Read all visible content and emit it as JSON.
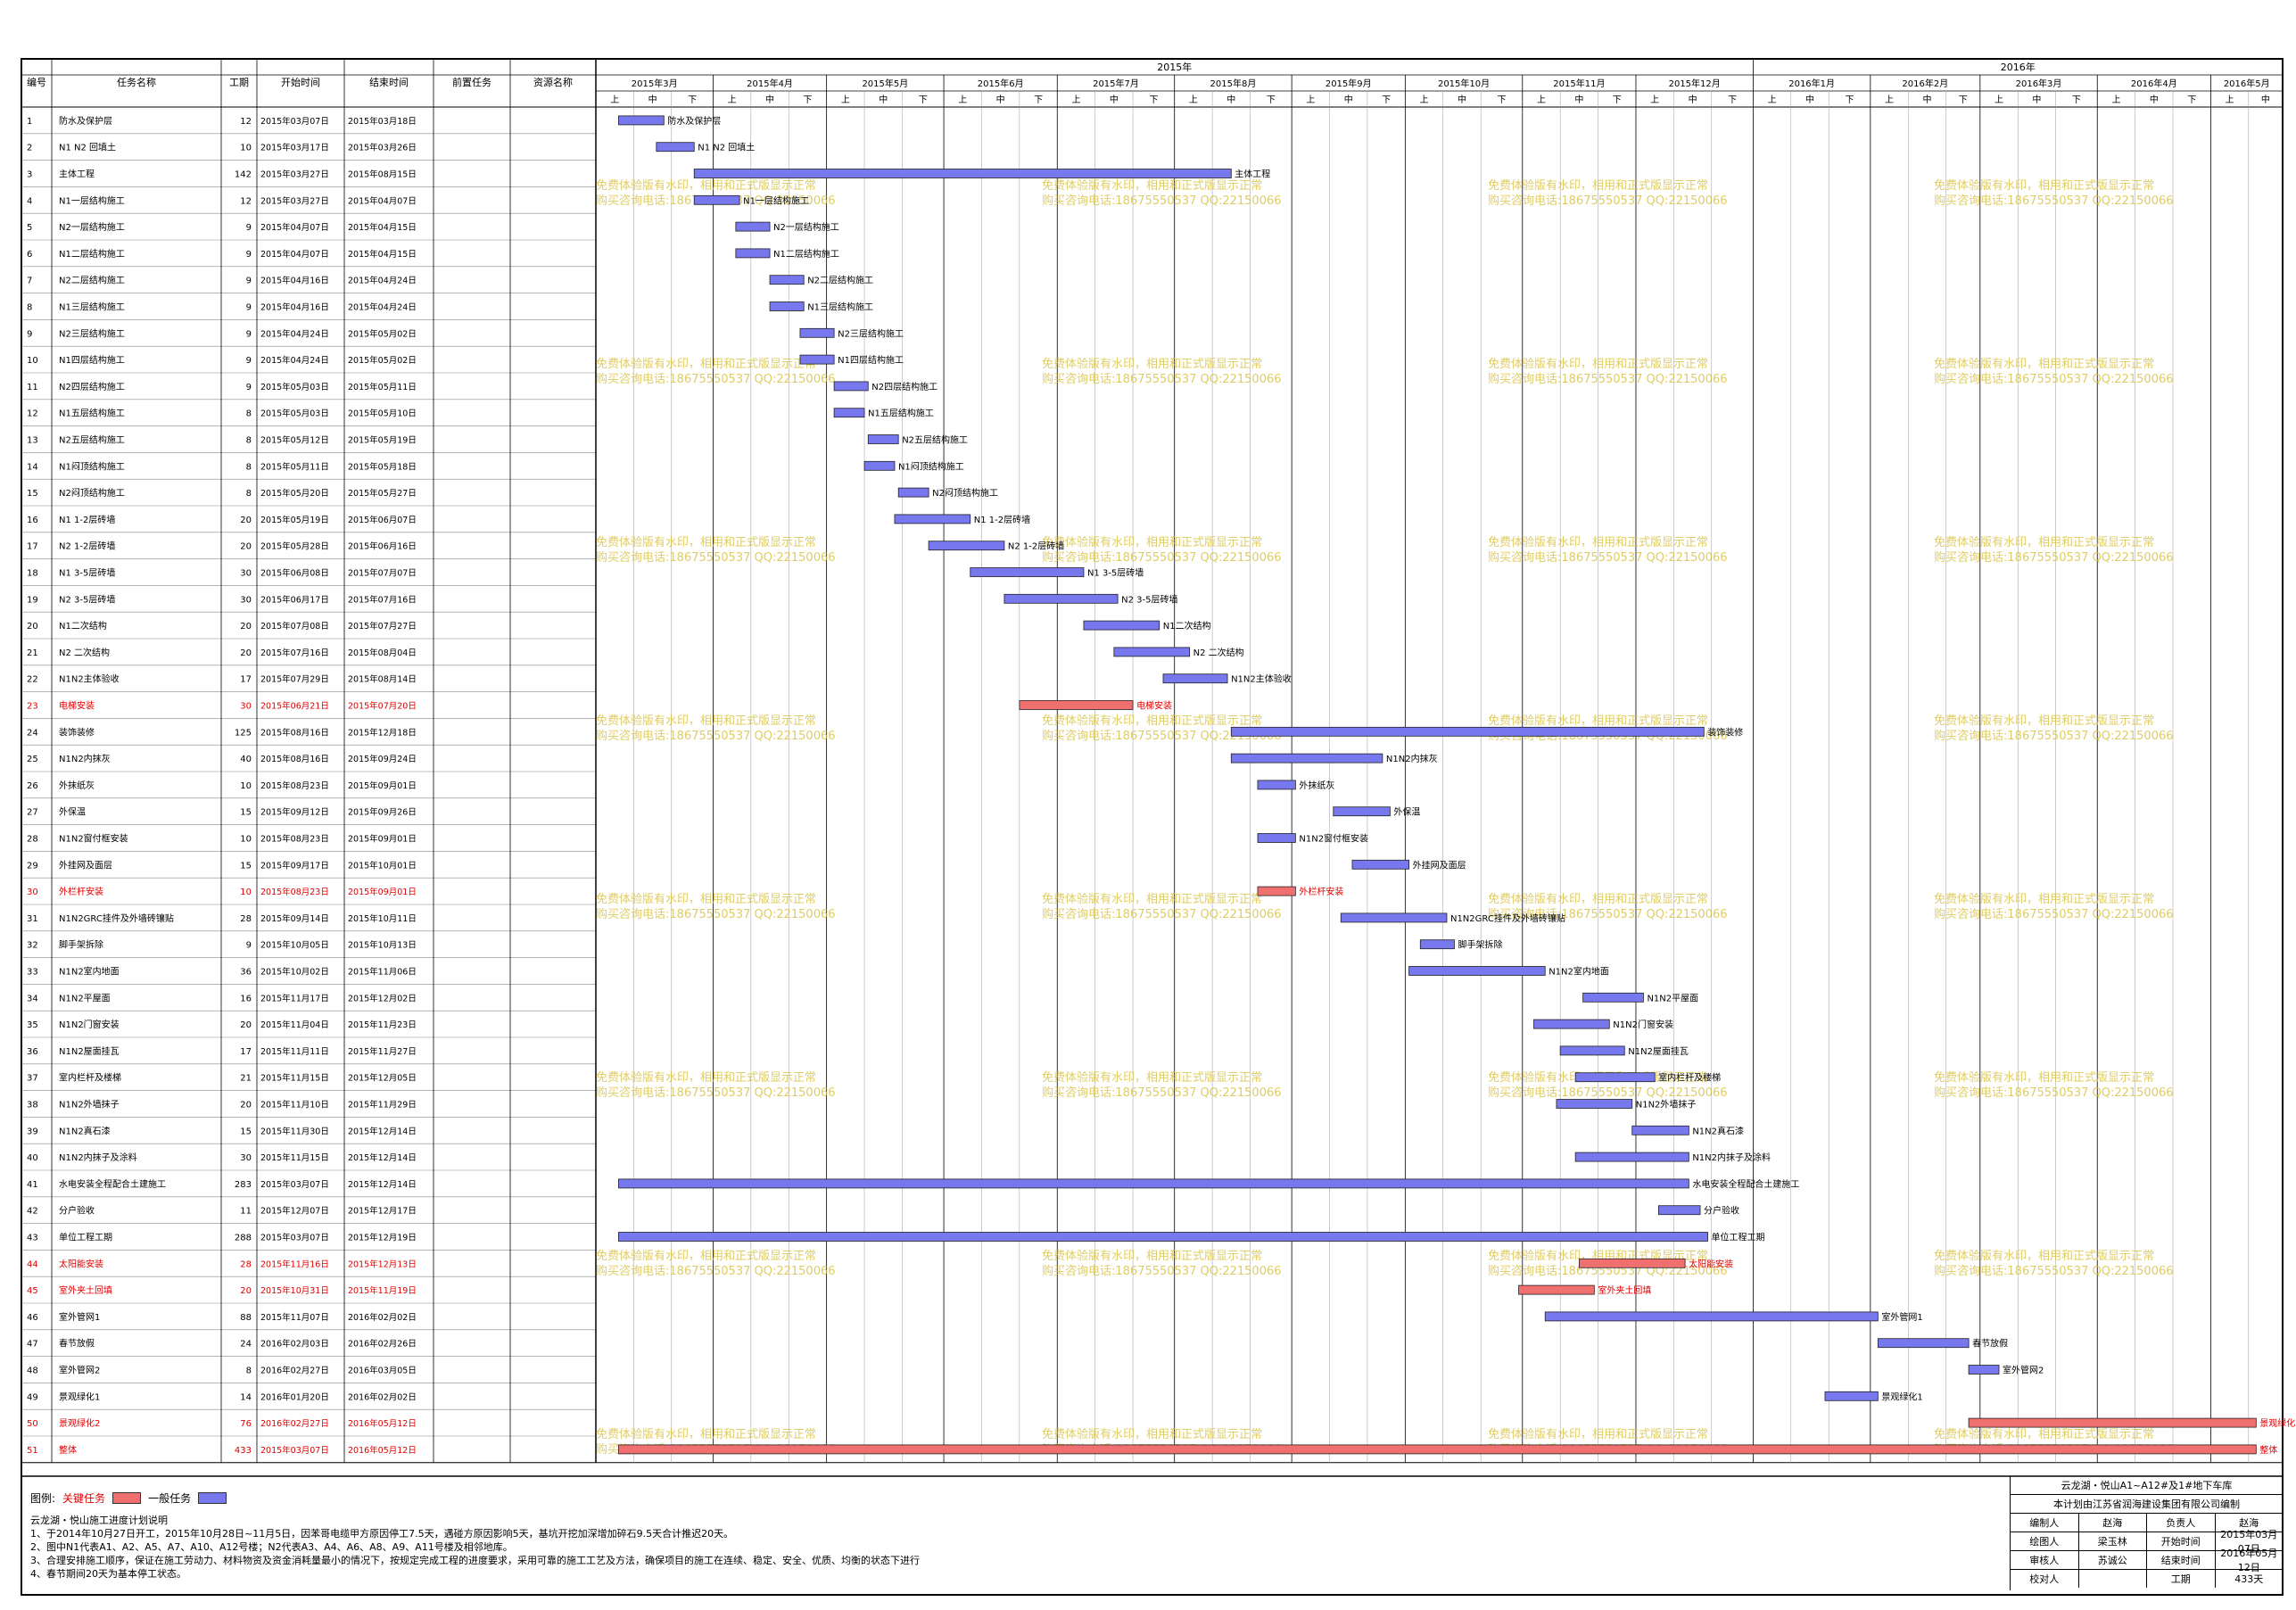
{
  "columns": [
    "编号",
    "任务名称",
    "工期",
    "开始时间",
    "结束时间",
    "前置任务",
    "资源名称"
  ],
  "years": [
    "2015年",
    "2016年"
  ],
  "months": [
    "2015年3月",
    "2015年4月",
    "2015年5月",
    "2015年6月",
    "2015年7月",
    "2015年8月",
    "2015年9月",
    "2015年10月",
    "2015年11月",
    "2015年12月",
    "2016年1月",
    "2016年2月",
    "2016年3月",
    "2016年4月",
    "2016年5月"
  ],
  "periods": [
    "上",
    "中",
    "下"
  ],
  "watermark": [
    "免费体验版有水印，相用和正式版显示正常",
    "购买咨询电话:18675550537 QQ:22150066"
  ],
  "chart_data": {
    "type": "gantt",
    "time_range": [
      "2015-03-01",
      "2016-05-20"
    ],
    "colors": {
      "normal": "#7777ee",
      "critical": "#f07070",
      "critical_text": "#e00000"
    },
    "tasks": [
      {
        "id": "1",
        "name": "防水及保护层",
        "duration": "12",
        "start": "2015年03月07日",
        "end": "2015年03月18日",
        "s": "2015-03-07",
        "e": "2015-03-18",
        "critical": false
      },
      {
        "id": "2",
        "name": "N1 N2 回填土",
        "duration": "10",
        "start": "2015年03月17日",
        "end": "2015年03月26日",
        "s": "2015-03-17",
        "e": "2015-03-26",
        "critical": false
      },
      {
        "id": "3",
        "name": "主体工程",
        "duration": "142",
        "start": "2015年03月27日",
        "end": "2015年08月15日",
        "s": "2015-03-27",
        "e": "2015-08-15",
        "critical": false
      },
      {
        "id": "4",
        "name": "N1一层结构施工",
        "duration": "12",
        "start": "2015年03月27日",
        "end": "2015年04月07日",
        "s": "2015-03-27",
        "e": "2015-04-07",
        "critical": false
      },
      {
        "id": "5",
        "name": "N2一层结构施工",
        "duration": "9",
        "start": "2015年04月07日",
        "end": "2015年04月15日",
        "s": "2015-04-07",
        "e": "2015-04-15",
        "critical": false
      },
      {
        "id": "6",
        "name": "N1二层结构施工",
        "duration": "9",
        "start": "2015年04月07日",
        "end": "2015年04月15日",
        "s": "2015-04-07",
        "e": "2015-04-15",
        "critical": false
      },
      {
        "id": "7",
        "name": "N2二层结构施工",
        "duration": "9",
        "start": "2015年04月16日",
        "end": "2015年04月24日",
        "s": "2015-04-16",
        "e": "2015-04-24",
        "critical": false
      },
      {
        "id": "8",
        "name": "N1三层结构施工",
        "duration": "9",
        "start": "2015年04月16日",
        "end": "2015年04月24日",
        "s": "2015-04-16",
        "e": "2015-04-24",
        "critical": false
      },
      {
        "id": "9",
        "name": "N2三层结构施工",
        "duration": "9",
        "start": "2015年04月24日",
        "end": "2015年05月02日",
        "s": "2015-04-24",
        "e": "2015-05-02",
        "critical": false
      },
      {
        "id": "10",
        "name": "N1四层结构施工",
        "duration": "9",
        "start": "2015年04月24日",
        "end": "2015年05月02日",
        "s": "2015-04-24",
        "e": "2015-05-02",
        "critical": false
      },
      {
        "id": "11",
        "name": "N2四层结构施工",
        "duration": "9",
        "start": "2015年05月03日",
        "end": "2015年05月11日",
        "s": "2015-05-03",
        "e": "2015-05-11",
        "critical": false
      },
      {
        "id": "12",
        "name": "N1五层结构施工",
        "duration": "8",
        "start": "2015年05月03日",
        "end": "2015年05月10日",
        "s": "2015-05-03",
        "e": "2015-05-10",
        "critical": false
      },
      {
        "id": "13",
        "name": "N2五层结构施工",
        "duration": "8",
        "start": "2015年05月12日",
        "end": "2015年05月19日",
        "s": "2015-05-12",
        "e": "2015-05-19",
        "critical": false
      },
      {
        "id": "14",
        "name": "N1闷顶结构施工",
        "duration": "8",
        "start": "2015年05月11日",
        "end": "2015年05月18日",
        "s": "2015-05-11",
        "e": "2015-05-18",
        "critical": false
      },
      {
        "id": "15",
        "name": "N2闷顶结构施工",
        "duration": "8",
        "start": "2015年05月20日",
        "end": "2015年05月27日",
        "s": "2015-05-20",
        "e": "2015-05-27",
        "critical": false
      },
      {
        "id": "16",
        "name": "N1 1-2层砖墙",
        "duration": "20",
        "start": "2015年05月19日",
        "end": "2015年06月07日",
        "s": "2015-05-19",
        "e": "2015-06-07",
        "critical": false
      },
      {
        "id": "17",
        "name": "N2 1-2层砖墙",
        "duration": "20",
        "start": "2015年05月28日",
        "end": "2015年06月16日",
        "s": "2015-05-28",
        "e": "2015-06-16",
        "critical": false
      },
      {
        "id": "18",
        "name": "N1 3-5层砖墙",
        "duration": "30",
        "start": "2015年06月08日",
        "end": "2015年07月07日",
        "s": "2015-06-08",
        "e": "2015-07-07",
        "critical": false
      },
      {
        "id": "19",
        "name": "N2 3-5层砖墙",
        "duration": "30",
        "start": "2015年06月17日",
        "end": "2015年07月16日",
        "s": "2015-06-17",
        "e": "2015-07-16",
        "critical": false
      },
      {
        "id": "20",
        "name": "N1二次结构",
        "duration": "20",
        "start": "2015年07月08日",
        "end": "2015年07月27日",
        "s": "2015-07-08",
        "e": "2015-07-27",
        "critical": false
      },
      {
        "id": "21",
        "name": "N2 二次结构",
        "duration": "20",
        "start": "2015年07月16日",
        "end": "2015年08月04日",
        "s": "2015-07-16",
        "e": "2015-08-04",
        "critical": false
      },
      {
        "id": "22",
        "name": "N1N2主体验收",
        "duration": "17",
        "start": "2015年07月29日",
        "end": "2015年08月14日",
        "s": "2015-07-29",
        "e": "2015-08-14",
        "critical": false
      },
      {
        "id": "23",
        "name": "电梯安装",
        "duration": "30",
        "start": "2015年06月21日",
        "end": "2015年07月20日",
        "s": "2015-06-21",
        "e": "2015-07-20",
        "critical": true
      },
      {
        "id": "24",
        "name": "装饰装修",
        "duration": "125",
        "start": "2015年08月16日",
        "end": "2015年12月18日",
        "s": "2015-08-16",
        "e": "2015-12-18",
        "critical": false
      },
      {
        "id": "25",
        "name": "N1N2内抹灰",
        "duration": "40",
        "start": "2015年08月16日",
        "end": "2015年09月24日",
        "s": "2015-08-16",
        "e": "2015-09-24",
        "critical": false
      },
      {
        "id": "26",
        "name": "外抹纸灰",
        "duration": "10",
        "start": "2015年08月23日",
        "end": "2015年09月01日",
        "s": "2015-08-23",
        "e": "2015-09-01",
        "critical": false
      },
      {
        "id": "27",
        "name": "外保温",
        "duration": "15",
        "start": "2015年09月12日",
        "end": "2015年09月26日",
        "s": "2015-09-12",
        "e": "2015-09-26",
        "critical": false
      },
      {
        "id": "28",
        "name": "N1N2窗付框安装",
        "duration": "10",
        "start": "2015年08月23日",
        "end": "2015年09月01日",
        "s": "2015-08-23",
        "e": "2015-09-01",
        "critical": false
      },
      {
        "id": "29",
        "name": "外挂网及面层",
        "duration": "15",
        "start": "2015年09月17日",
        "end": "2015年10月01日",
        "s": "2015-09-17",
        "e": "2015-10-01",
        "critical": false
      },
      {
        "id": "30",
        "name": "外栏杆安装",
        "duration": "10",
        "start": "2015年08月23日",
        "end": "2015年09月01日",
        "s": "2015-08-23",
        "e": "2015-09-01",
        "critical": true
      },
      {
        "id": "31",
        "name": "N1N2GRC挂件及外墙砖镶贴",
        "duration": "28",
        "start": "2015年09月14日",
        "end": "2015年10月11日",
        "s": "2015-09-14",
        "e": "2015-10-11",
        "critical": false
      },
      {
        "id": "32",
        "name": "脚手架拆除",
        "duration": "9",
        "start": "2015年10月05日",
        "end": "2015年10月13日",
        "s": "2015-10-05",
        "e": "2015-10-13",
        "critical": false
      },
      {
        "id": "33",
        "name": "N1N2室内地面",
        "duration": "36",
        "start": "2015年10月02日",
        "end": "2015年11月06日",
        "s": "2015-10-02",
        "e": "2015-11-06",
        "critical": false
      },
      {
        "id": "34",
        "name": "N1N2平屋面",
        "duration": "16",
        "start": "2015年11月17日",
        "end": "2015年12月02日",
        "s": "2015-11-17",
        "e": "2015-12-02",
        "critical": false
      },
      {
        "id": "35",
        "name": "N1N2门窗安装",
        "duration": "20",
        "start": "2015年11月04日",
        "end": "2015年11月23日",
        "s": "2015-11-04",
        "e": "2015-11-23",
        "critical": false
      },
      {
        "id": "36",
        "name": "N1N2屋面挂瓦",
        "duration": "17",
        "start": "2015年11月11日",
        "end": "2015年11月27日",
        "s": "2015-11-11",
        "e": "2015-11-27",
        "critical": false
      },
      {
        "id": "37",
        "name": "室内栏杆及楼梯",
        "duration": "21",
        "start": "2015年11月15日",
        "end": "2015年12月05日",
        "s": "2015-11-15",
        "e": "2015-12-05",
        "critical": false
      },
      {
        "id": "38",
        "name": "N1N2外墙抹子",
        "duration": "20",
        "start": "2015年11月10日",
        "end": "2015年11月29日",
        "s": "2015-11-10",
        "e": "2015-11-29",
        "critical": false
      },
      {
        "id": "39",
        "name": "N1N2真石漆",
        "duration": "15",
        "start": "2015年11月30日",
        "end": "2015年12月14日",
        "s": "2015-11-30",
        "e": "2015-12-14",
        "critical": false
      },
      {
        "id": "40",
        "name": "N1N2内抹子及涂料",
        "duration": "30",
        "start": "2015年11月15日",
        "end": "2015年12月14日",
        "s": "2015-11-15",
        "e": "2015-12-14",
        "critical": false
      },
      {
        "id": "41",
        "name": "水电安装全程配合土建施工",
        "duration": "283",
        "start": "2015年03月07日",
        "end": "2015年12月14日",
        "s": "2015-03-07",
        "e": "2015-12-14",
        "critical": false
      },
      {
        "id": "42",
        "name": "分户验收",
        "duration": "11",
        "start": "2015年12月07日",
        "end": "2015年12月17日",
        "s": "2015-12-07",
        "e": "2015-12-17",
        "critical": false
      },
      {
        "id": "43",
        "name": "单位工程工期",
        "duration": "288",
        "start": "2015年03月07日",
        "end": "2015年12月19日",
        "s": "2015-03-07",
        "e": "2015-12-19",
        "critical": false
      },
      {
        "id": "44",
        "name": "太阳能安装",
        "duration": "28",
        "start": "2015年11月16日",
        "end": "2015年12月13日",
        "s": "2015-11-16",
        "e": "2015-12-13",
        "critical": true
      },
      {
        "id": "45",
        "name": "室外夹土回填",
        "duration": "20",
        "start": "2015年10月31日",
        "end": "2015年11月19日",
        "s": "2015-10-31",
        "e": "2015-11-19",
        "critical": true
      },
      {
        "id": "46",
        "name": "室外管网1",
        "duration": "88",
        "start": "2015年11月07日",
        "end": "2016年02月02日",
        "s": "2015-11-07",
        "e": "2016-02-02",
        "critical": false
      },
      {
        "id": "47",
        "name": "春节放假",
        "duration": "24",
        "start": "2016年02月03日",
        "end": "2016年02月26日",
        "s": "2016-02-03",
        "e": "2016-02-26",
        "critical": false
      },
      {
        "id": "48",
        "name": "室外管网2",
        "duration": "8",
        "start": "2016年02月27日",
        "end": "2016年03月05日",
        "s": "2016-02-27",
        "e": "2016-03-05",
        "critical": false
      },
      {
        "id": "49",
        "name": "景观绿化1",
        "duration": "14",
        "start": "2016年01月20日",
        "end": "2016年02月02日",
        "s": "2016-01-20",
        "e": "2016-02-02",
        "critical": false
      },
      {
        "id": "50",
        "name": "景观绿化2",
        "duration": "76",
        "start": "2016年02月27日",
        "end": "2016年05月12日",
        "s": "2016-02-27",
        "e": "2016-05-12",
        "critical": true
      },
      {
        "id": "51",
        "name": "整体",
        "duration": "433",
        "start": "2015年03月07日",
        "end": "2016年05月12日",
        "s": "2015-03-07",
        "e": "2016-05-12",
        "critical": true
      }
    ]
  },
  "legend": {
    "label": "图例:",
    "critical": "关键任务",
    "normal": "一般任务"
  },
  "notes": [
    "云龙湖・悦山施工进度计划说明",
    "1、于2014年10月27日开工，2015年10月28日~11月5日，因苯哥电缆甲方原因停工7.5天，遇碰方原因影响5天，基坑开挖加深增加碎石9.5天合计推迟20天。",
    "2、图中N1代表A1、A2、A5、A7、A10、A12号楼；N2代表A3、A4、A6、A8、A9、A11号楼及相邻地库。",
    "3、合理安排施工顺序，保证在施工劳动力、材料物资及资金消耗量最小的情况下，按规定完成工程的进度要求，采用可靠的施工工艺及方法，确保项目的施工在连续、稳定、安全、优质、均衡的状态下进行",
    "4、春节期间20天为基本停工状态。"
  ],
  "signoff": {
    "project": "云龙湖・悦山A1~A12#及1#地下车库",
    "org": "本计划由江苏省润海建设集团有限公司编制",
    "rows": [
      [
        "编制人",
        "赵海",
        "负责人",
        "赵海"
      ],
      [
        "绘图人",
        "梁玉林",
        "开始时间",
        "2015年03月07日"
      ],
      [
        "审核人",
        "苏诚公",
        "结束时间",
        "2016年05月12日"
      ],
      [
        "校对人",
        "",
        "工期",
        "433天"
      ]
    ]
  }
}
